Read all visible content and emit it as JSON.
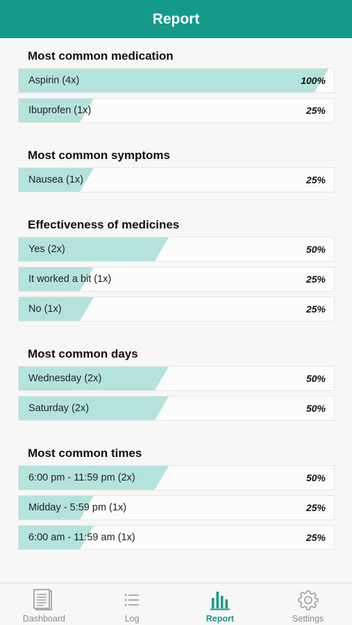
{
  "header": {
    "title": "Report"
  },
  "colors": {
    "accent": "#159a8a",
    "bar": "#b4e3dd"
  },
  "sections": [
    {
      "title": "Most common medication",
      "rows": [
        {
          "label": "Aspirin (4x)",
          "percent": "100%",
          "fraction": 1.0
        },
        {
          "label": "Ibuprofen (1x)",
          "percent": "25%",
          "fraction": 0.25
        }
      ]
    },
    {
      "title": "Most common symptoms",
      "rows": [
        {
          "label": "Nausea (1x)",
          "percent": "25%",
          "fraction": 0.25
        }
      ]
    },
    {
      "title": "Effectiveness of medicines",
      "rows": [
        {
          "label": "Yes (2x)",
          "percent": "50%",
          "fraction": 0.5
        },
        {
          "label": "It worked a bit (1x)",
          "percent": "25%",
          "fraction": 0.25
        },
        {
          "label": "No (1x)",
          "percent": "25%",
          "fraction": 0.25
        }
      ]
    },
    {
      "title": "Most common days",
      "rows": [
        {
          "label": "Wednesday (2x)",
          "percent": "50%",
          "fraction": 0.5
        },
        {
          "label": "Saturday (2x)",
          "percent": "50%",
          "fraction": 0.5
        }
      ]
    },
    {
      "title": "Most common times",
      "rows": [
        {
          "label": "6:00 pm - 11:59 pm (2x)",
          "percent": "50%",
          "fraction": 0.5
        },
        {
          "label": "Midday - 5:59 pm (1x)",
          "percent": "25%",
          "fraction": 0.25
        },
        {
          "label": "6:00 am - 11:59 am (1x)",
          "percent": "25%",
          "fraction": 0.25
        }
      ]
    }
  ],
  "tabs": [
    {
      "label": "Dashboard",
      "icon": "dashboard-icon",
      "active": false
    },
    {
      "label": "Log",
      "icon": "list-icon",
      "active": false
    },
    {
      "label": "Report",
      "icon": "bar-chart-icon",
      "active": true
    },
    {
      "label": "Settings",
      "icon": "gear-icon",
      "active": false
    }
  ]
}
